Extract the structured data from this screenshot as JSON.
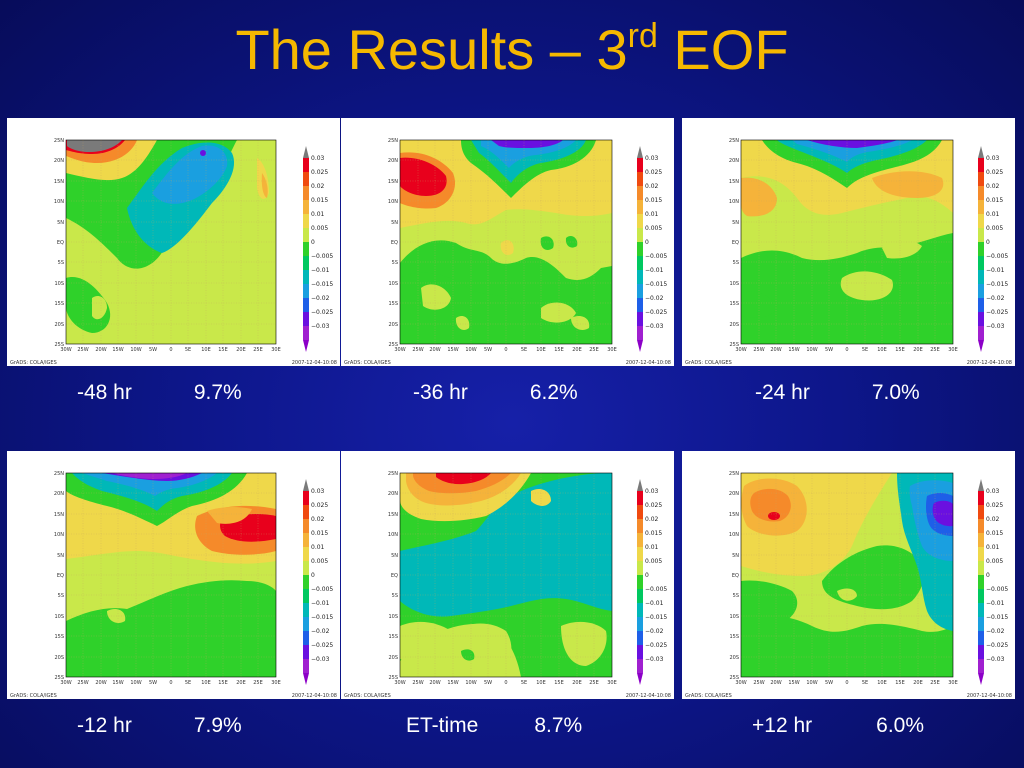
{
  "slide": {
    "title_main": "The Results – 3",
    "title_sup": "rd",
    "title_end": " EOF"
  },
  "colorbar": {
    "labels": [
      "0.03",
      "0.025",
      "0.02",
      "0.015",
      "0.01",
      "0.005",
      "0",
      "−0.005",
      "−0.01",
      "−0.015",
      "−0.02",
      "−0.025",
      "−0.03"
    ],
    "colors": [
      "#e8001c",
      "#f04a10",
      "#f58a2a",
      "#f5b33a",
      "#efd84a",
      "#c9e84a",
      "#2fd12a",
      "#00c860",
      "#00b8b8",
      "#1a9fe0",
      "#1e5fe8",
      "#6a10e0",
      "#a020d0"
    ],
    "top_color": "#7a7a7a",
    "bottom_color": "#8c00c8"
  },
  "map": {
    "lat_labels": [
      "25N",
      "20N",
      "15N",
      "10N",
      "5N",
      "EQ",
      "5S",
      "10S",
      "15S",
      "20S",
      "25S"
    ],
    "lon_labels": [
      "30W",
      "25W",
      "20W",
      "15W",
      "10W",
      "5W",
      "0",
      "5E",
      "10E",
      "15E",
      "20E",
      "25E",
      "30E"
    ],
    "footer_left": "GrADS: COLA/IGES",
    "footer_right": "2007-12-04-10:08"
  },
  "panels": [
    {
      "label": "-48 hr",
      "pct": "9.7%"
    },
    {
      "label": "-36 hr",
      "pct": "6.2%"
    },
    {
      "label": "-24 hr",
      "pct": "7.0%"
    },
    {
      "label": "-12 hr",
      "pct": "7.9%"
    },
    {
      "label": "ET-time",
      "pct": "8.7%"
    },
    {
      "label": "+12 hr",
      "pct": "6.0%"
    }
  ]
}
